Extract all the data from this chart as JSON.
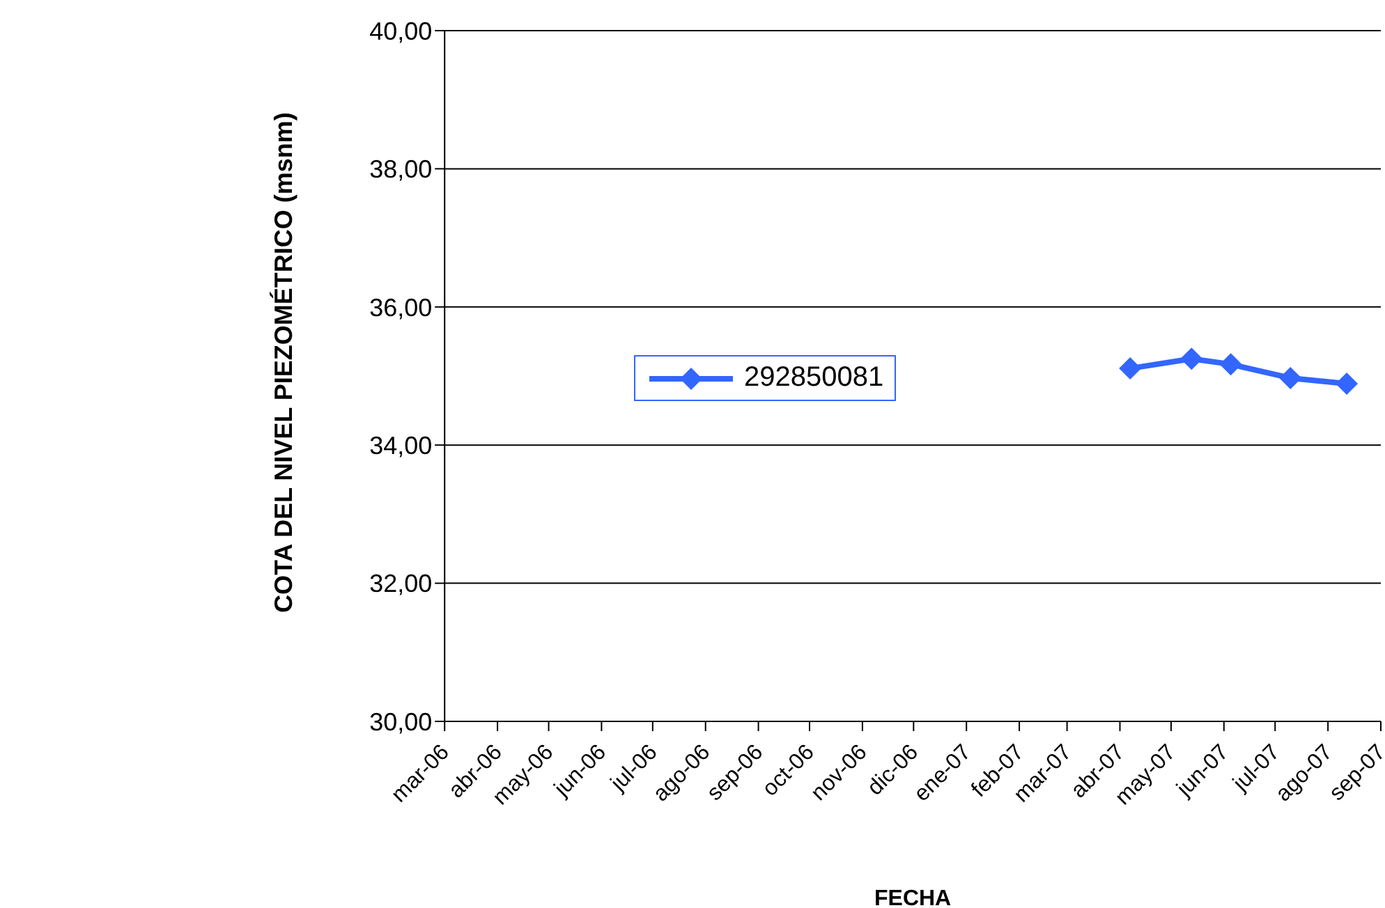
{
  "chart_data": {
    "type": "line",
    "xlabel": "FECHA",
    "ylabel": "COTA DEL NIVEL PIEZOMÉTRICO (msnm)",
    "x": [
      "2007-04-07",
      "2007-05-13",
      "2007-06-05",
      "2007-07-10",
      "2007-08-12"
    ],
    "series": [
      {
        "name": "292850081",
        "color": "#3366ff",
        "values": [
          35.11,
          35.25,
          35.17,
          34.97,
          34.89
        ]
      }
    ],
    "xlim": [
      "2006-03-01",
      "2007-09-01"
    ],
    "xticks": [
      {
        "value": "2006-03-01",
        "label": "mar-06"
      },
      {
        "value": "2006-04-01",
        "label": "abr-06"
      },
      {
        "value": "2006-05-01",
        "label": "may-06"
      },
      {
        "value": "2006-06-01",
        "label": "jun-06"
      },
      {
        "value": "2006-07-01",
        "label": "jul-06"
      },
      {
        "value": "2006-08-01",
        "label": "ago-06"
      },
      {
        "value": "2006-09-01",
        "label": "sep-06"
      },
      {
        "value": "2006-10-01",
        "label": "oct-06"
      },
      {
        "value": "2006-11-01",
        "label": "nov-06"
      },
      {
        "value": "2006-12-01",
        "label": "dic-06"
      },
      {
        "value": "2007-01-01",
        "label": "ene-07"
      },
      {
        "value": "2007-02-01",
        "label": "feb-07"
      },
      {
        "value": "2007-03-01",
        "label": "mar-07"
      },
      {
        "value": "2007-04-01",
        "label": "abr-07"
      },
      {
        "value": "2007-05-01",
        "label": "may-07"
      },
      {
        "value": "2007-06-01",
        "label": "jun-07"
      },
      {
        "value": "2007-07-01",
        "label": "jul-07"
      },
      {
        "value": "2007-08-01",
        "label": "ago-07"
      },
      {
        "value": "2007-09-01",
        "label": "sep-07"
      }
    ],
    "ylim": [
      30,
      40
    ],
    "yticks": [
      {
        "value": 30,
        "label": "30,00"
      },
      {
        "value": 32,
        "label": "32,00"
      },
      {
        "value": 34,
        "label": "34,00"
      },
      {
        "value": 36,
        "label": "36,00"
      },
      {
        "value": 38,
        "label": "38,00"
      },
      {
        "value": 40,
        "label": "40,00"
      }
    ],
    "grid": "y",
    "legend": "center",
    "marker": "diamond",
    "line_style": "solid"
  }
}
